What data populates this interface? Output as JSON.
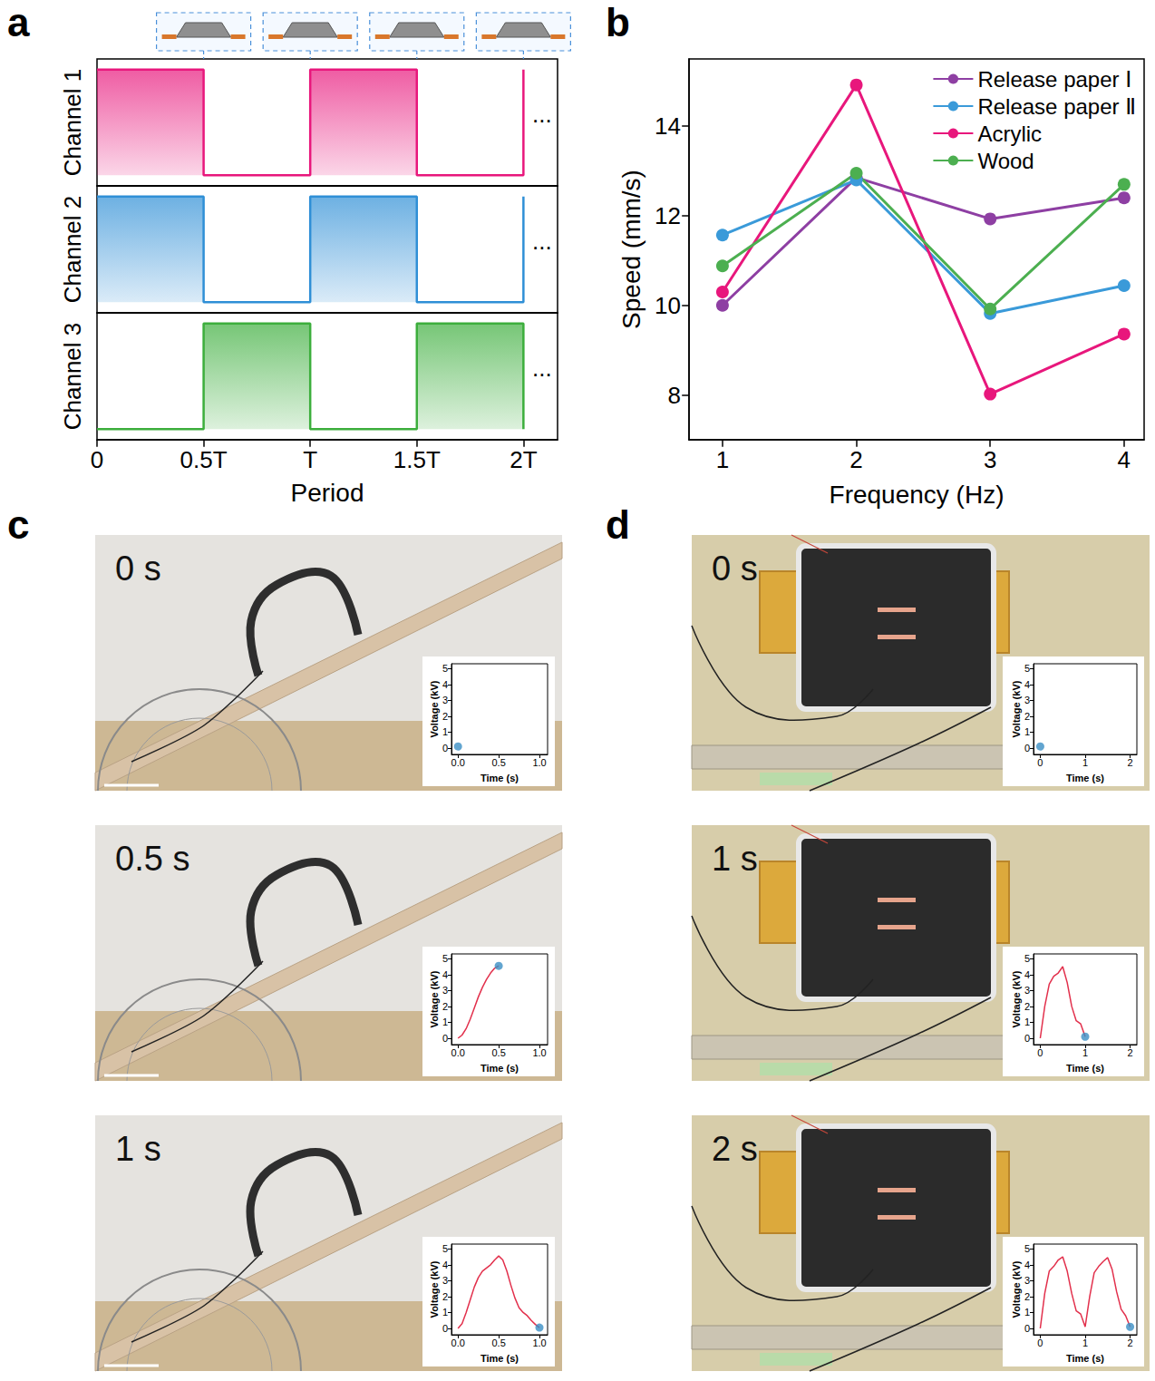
{
  "chart_data": [
    {
      "letter": "a",
      "type": "line",
      "line_style": "step",
      "xlabel": "Period",
      "continuation": "...",
      "x": [
        0,
        0.5,
        1,
        1.5,
        2
      ],
      "xlim": [
        0,
        2.16
      ],
      "xticks": [
        0,
        {
          "value": 0.5,
          "label": "0.5T"
        },
        {
          "value": 1,
          "label": "T"
        },
        {
          "value": 1.5,
          "label": "1.5T"
        },
        {
          "value": 2,
          "label": "2T"
        }
      ],
      "ylim": [
        -0.1,
        1.1
      ],
      "tick_labels": "x",
      "grid": false,
      "series": [
        {
          "name": "Channel 1",
          "color": "#e8177c",
          "values": [
            1,
            0,
            1,
            0,
            1
          ]
        },
        {
          "name": "Channel 2",
          "color": "#2f8fd6",
          "values": [
            1,
            0,
            1,
            0,
            1
          ]
        },
        {
          "name": "Channel 3",
          "color": "#3cae3c",
          "values": [
            0,
            1,
            0,
            1,
            0
          ]
        }
      ]
    },
    {
      "letter": "b",
      "type": "line",
      "xlabel": "Frequency (Hz)",
      "ylabel": "Speed (mm/s)",
      "x": [
        1,
        2,
        3,
        4
      ],
      "xlim": [
        0.75,
        4.15
      ],
      "xticks": [
        1,
        2,
        3,
        4
      ],
      "ylim": [
        7,
        15.5
      ],
      "yticks": [
        8,
        10,
        12,
        14
      ],
      "grid": false,
      "legend": "upper right",
      "marker": "circle",
      "series": [
        {
          "name": "Release paper Ⅰ",
          "color": "#8e3fa3",
          "values": [
            10.0,
            12.85,
            11.93,
            12.4
          ]
        },
        {
          "name": "Release paper Ⅱ",
          "color": "#3a9ad9",
          "values": [
            11.57,
            12.8,
            9.82,
            10.44
          ]
        },
        {
          "name": "Acrylic",
          "color": "#e8177c",
          "values": [
            10.3,
            14.92,
            8.02,
            9.36
          ]
        },
        {
          "name": "Wood",
          "color": "#4caf50",
          "values": [
            10.88,
            12.95,
            9.92,
            12.7
          ]
        }
      ]
    },
    {
      "letter": "c",
      "type": "line",
      "title": "0 s",
      "xlabel": "Time (s)",
      "ylabel": "Voltage (kV)",
      "xlim": [
        -0.08,
        1.1
      ],
      "xticks": [
        {
          "value": 0,
          "label": "0.0"
        },
        0.5,
        {
          "value": 1,
          "label": "1.0"
        }
      ],
      "ylim": [
        -0.4,
        5.3
      ],
      "yticks": [
        0,
        1,
        2,
        3,
        4,
        5
      ],
      "series": [
        {
          "type": "scatter",
          "marker": "circle",
          "color": "#3b8fc4",
          "x": [
            0
          ],
          "values": [
            0.1
          ]
        }
      ]
    },
    {
      "type": "line",
      "title": "0.5 s",
      "xlabel": "Time (s)",
      "ylabel": "Voltage (kV)",
      "xlim": [
        -0.08,
        1.1
      ],
      "xticks": [
        {
          "value": 0,
          "label": "0.0"
        },
        0.5,
        {
          "value": 1,
          "label": "1.0"
        }
      ],
      "ylim": [
        -0.4,
        5.3
      ],
      "yticks": [
        0,
        1,
        2,
        3,
        4,
        5
      ],
      "series": [
        {
          "type": "line",
          "marker": "none",
          "color": "#e2304c",
          "x": [
            0,
            0.05,
            0.1,
            0.15,
            0.2,
            0.25,
            0.3,
            0.35,
            0.4,
            0.45,
            0.5
          ],
          "values": [
            0,
            0.2,
            0.6,
            1.2,
            1.9,
            2.6,
            3.2,
            3.7,
            4.1,
            4.4,
            4.55
          ]
        },
        {
          "type": "scatter",
          "marker": "circle",
          "color": "#3b8fc4",
          "x": [
            0.5
          ],
          "values": [
            4.55
          ]
        }
      ]
    },
    {
      "type": "line",
      "title": "1 s",
      "xlabel": "Time (s)",
      "ylabel": "Voltage (kV)",
      "xlim": [
        -0.08,
        1.1
      ],
      "xticks": [
        {
          "value": 0,
          "label": "0.0"
        },
        0.5,
        {
          "value": 1,
          "label": "1.0"
        }
      ],
      "ylim": [
        -0.4,
        5.3
      ],
      "yticks": [
        0,
        1,
        2,
        3,
        4,
        5
      ],
      "series": [
        {
          "type": "line",
          "marker": "none",
          "color": "#e2304c",
          "x": [
            0,
            0.05,
            0.1,
            0.15,
            0.2,
            0.25,
            0.3,
            0.35,
            0.4,
            0.45,
            0.5,
            0.55,
            0.6,
            0.65,
            0.7,
            0.75,
            0.8,
            0.85,
            0.9,
            0.95,
            1.0
          ],
          "values": [
            0,
            0.3,
            1.0,
            1.8,
            2.6,
            3.2,
            3.6,
            3.8,
            4.0,
            4.3,
            4.55,
            4.3,
            3.6,
            2.7,
            1.9,
            1.3,
            1.0,
            0.8,
            0.5,
            0.25,
            0.05
          ]
        },
        {
          "type": "scatter",
          "marker": "circle",
          "color": "#3b8fc4",
          "x": [
            1.0
          ],
          "values": [
            0.05
          ]
        }
      ]
    },
    {
      "letter": "d",
      "type": "line",
      "title": "0 s",
      "xlabel": "Time (s)",
      "ylabel": "Voltage (kV)",
      "xlim": [
        -0.15,
        2.15
      ],
      "xticks": [
        0,
        1,
        2
      ],
      "ylim": [
        -0.4,
        5.3
      ],
      "yticks": [
        0,
        1,
        2,
        3,
        4,
        5
      ],
      "series": [
        {
          "type": "scatter",
          "marker": "circle",
          "color": "#3b8fc4",
          "x": [
            0
          ],
          "values": [
            0.1
          ]
        }
      ]
    },
    {
      "type": "line",
      "title": "1 s",
      "xlabel": "Time (s)",
      "ylabel": "Voltage (kV)",
      "xlim": [
        -0.15,
        2.15
      ],
      "xticks": [
        0,
        1,
        2
      ],
      "ylim": [
        -0.4,
        5.3
      ],
      "yticks": [
        0,
        1,
        2,
        3,
        4,
        5
      ],
      "series": [
        {
          "type": "line",
          "marker": "none",
          "color": "#e2304c",
          "x": [
            0,
            0.1,
            0.2,
            0.3,
            0.4,
            0.5,
            0.6,
            0.7,
            0.8,
            0.9,
            1.0
          ],
          "values": [
            0,
            2.0,
            3.4,
            3.9,
            4.1,
            4.5,
            3.5,
            2.0,
            1.1,
            0.9,
            0.1
          ]
        },
        {
          "type": "scatter",
          "marker": "circle",
          "color": "#3b8fc4",
          "x": [
            1.0
          ],
          "values": [
            0.1
          ]
        }
      ]
    },
    {
      "type": "line",
      "title": "2 s",
      "xlabel": "Time (s)",
      "ylabel": "Voltage (kV)",
      "xlim": [
        -0.15,
        2.15
      ],
      "xticks": [
        0,
        1,
        2
      ],
      "ylim": [
        -0.4,
        5.3
      ],
      "yticks": [
        0,
        1,
        2,
        3,
        4,
        5
      ],
      "series": [
        {
          "type": "line",
          "marker": "none",
          "color": "#e2304c",
          "x": [
            0,
            0.1,
            0.2,
            0.3,
            0.4,
            0.5,
            0.6,
            0.7,
            0.8,
            0.9,
            1.0,
            1.1,
            1.2,
            1.3,
            1.4,
            1.5,
            1.6,
            1.7,
            1.8,
            1.9,
            2.0
          ],
          "values": [
            0,
            2.2,
            3.6,
            3.9,
            4.3,
            4.5,
            3.6,
            2.2,
            1.1,
            0.9,
            0.1,
            2.0,
            3.5,
            3.9,
            4.2,
            4.45,
            3.7,
            2.3,
            1.2,
            0.8,
            0.1
          ]
        },
        {
          "type": "scatter",
          "marker": "circle",
          "color": "#3b8fc4",
          "x": [
            2.0
          ],
          "values": [
            0.1
          ]
        }
      ]
    }
  ]
}
